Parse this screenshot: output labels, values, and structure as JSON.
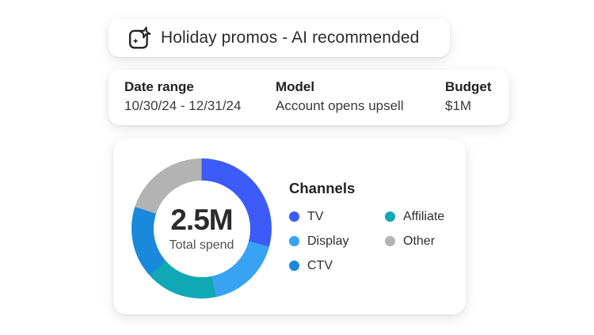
{
  "header_card": {
    "title": "Holiday promos - AI recommended",
    "icon": "ai-sparkle-icon"
  },
  "summary_card": {
    "fields": [
      {
        "label": "Date range",
        "value": "10/30/24 - 12/31/24"
      },
      {
        "label": "Model",
        "value": "Account opens upsell"
      },
      {
        "label": "Budget",
        "value": "$1M"
      }
    ]
  },
  "chart_data": {
    "type": "pie",
    "subtype": "donut",
    "title": "Channels",
    "center_value": "2.5M",
    "center_label": "Total spend",
    "total_spend": "2.5M",
    "legend_position": "right",
    "segments_clockwise_from_top": [
      {
        "name": "TV",
        "color": "#3D5BF9",
        "start_deg": 0,
        "end_deg": 105,
        "percent_estimate": 29.2
      },
      {
        "name": "Display",
        "color": "#38A3F2",
        "start_deg": 105,
        "end_deg": 168,
        "percent_estimate": 17.5
      },
      {
        "name": "Affiliate",
        "color": "#10A8B4",
        "start_deg": 168,
        "end_deg": 228,
        "percent_estimate": 16.7
      },
      {
        "name": "CTV",
        "color": "#1B89DB",
        "start_deg": 228,
        "end_deg": 288,
        "percent_estimate": 16.6
      },
      {
        "name": "Other",
        "color": "#B3B3B3",
        "start_deg": 288,
        "end_deg": 360,
        "percent_estimate": 20.0
      }
    ],
    "legend": {
      "title": "Channels",
      "columns": [
        [
          "TV",
          "Display",
          "CTV"
        ],
        [
          "Affiliate",
          "Other"
        ]
      ]
    }
  }
}
